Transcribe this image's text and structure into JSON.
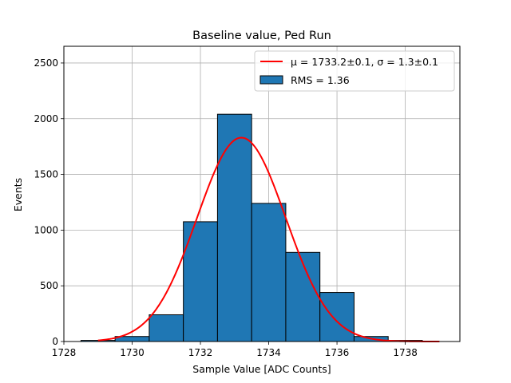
{
  "chart_data": {
    "type": "bar",
    "title": "Baseline value, Ped Run",
    "xlabel": "Sample Value [ADC Counts]",
    "ylabel": "Events",
    "xlim": [
      1728,
      1739.6
    ],
    "ylim": [
      0,
      2650
    ],
    "xticks": [
      1728,
      1730,
      1732,
      1734,
      1736,
      1738
    ],
    "yticks": [
      0,
      500,
      1000,
      1500,
      2000,
      2500
    ],
    "grid": true,
    "legend_position": "top-right",
    "histogram": {
      "bin_edges": [
        1728.5,
        1729.5,
        1730.5,
        1731.5,
        1732.5,
        1733.5,
        1734.5,
        1735.5,
        1736.5,
        1737.5,
        1738.5
      ],
      "counts": [
        10,
        45,
        240,
        1075,
        2040,
        1240,
        800,
        440,
        45,
        10
      ],
      "color": "#1f77b4",
      "edge_color": "#000000",
      "legend_label": "RMS = 1.36"
    },
    "fit": {
      "mu": 1733.2,
      "sigma": 1.3,
      "amplitude": 1830,
      "x_range": [
        1729,
        1739
      ],
      "color": "#ff0000",
      "legend_label": "μ = 1733.2±0.1, σ = 1.3±0.1"
    }
  }
}
